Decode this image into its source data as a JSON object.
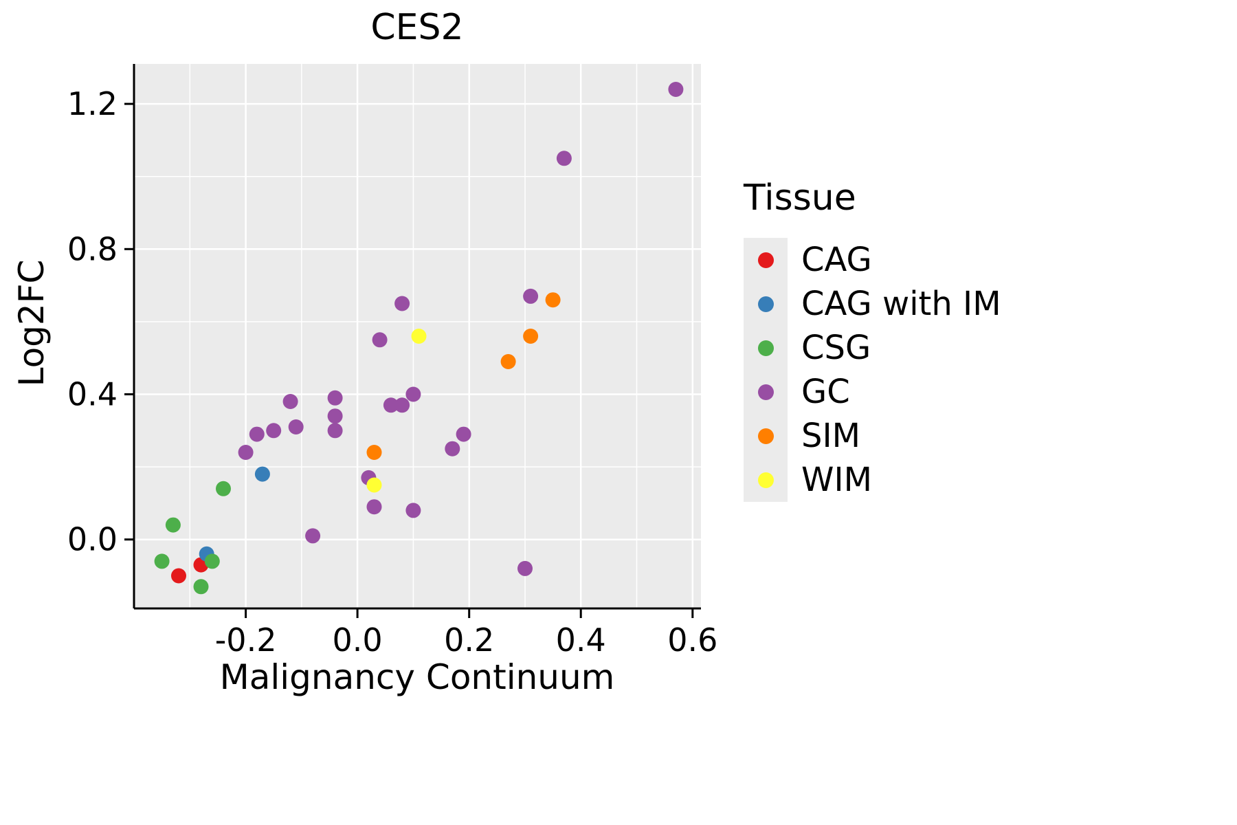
{
  "title": "CES2",
  "axes": {
    "x": {
      "label": "Malignancy Continuum",
      "ticks": [
        "-0.2",
        "0.0",
        "0.2",
        "0.4",
        "0.6"
      ],
      "tick_values": [
        -0.2,
        0.0,
        0.2,
        0.4,
        0.6
      ],
      "minor": [
        -0.3,
        -0.1,
        0.1,
        0.3,
        0.5
      ]
    },
    "y": {
      "label": "Log2FC",
      "ticks": [
        "0.0",
        "0.4",
        "0.8",
        "1.2"
      ],
      "tick_values": [
        0.0,
        0.4,
        0.8,
        1.2
      ],
      "minor": [
        0.2,
        0.6,
        1.0
      ]
    }
  },
  "legend": {
    "title": "Tissue",
    "items": [
      {
        "label": "CAG",
        "color": "#E41A1C"
      },
      {
        "label": "CAG with IM",
        "color": "#377EB8"
      },
      {
        "label": "CSG",
        "color": "#4DAF4A"
      },
      {
        "label": "GC",
        "color": "#984EA3"
      },
      {
        "label": "SIM",
        "color": "#FF7F00"
      },
      {
        "label": "WIM",
        "color": "#FFFF33"
      }
    ]
  },
  "colors": {
    "panel_bg": "#EBEBEB",
    "grid": "#FFFFFF",
    "axis": "#000000"
  },
  "chart_data": {
    "type": "scatter",
    "title": "CES2",
    "xlabel": "Malignancy Continuum",
    "ylabel": "Log2FC",
    "xlim": [
      -0.4,
      0.615
    ],
    "ylim": [
      -0.19,
      1.31
    ],
    "grid": true,
    "legend_position": "right",
    "series": [
      {
        "name": "CAG",
        "color": "#E41A1C",
        "points": [
          [
            -0.32,
            -0.1
          ],
          [
            -0.28,
            -0.07
          ]
        ]
      },
      {
        "name": "CAG with IM",
        "color": "#377EB8",
        "points": [
          [
            -0.17,
            0.18
          ],
          [
            -0.27,
            -0.04
          ]
        ]
      },
      {
        "name": "CSG",
        "color": "#4DAF4A",
        "points": [
          [
            -0.24,
            0.14
          ],
          [
            -0.33,
            0.04
          ],
          [
            -0.35,
            -0.06
          ],
          [
            -0.26,
            -0.06
          ],
          [
            -0.28,
            -0.13
          ]
        ]
      },
      {
        "name": "GC",
        "color": "#984EA3",
        "points": [
          [
            0.57,
            1.24
          ],
          [
            0.37,
            1.05
          ],
          [
            0.31,
            0.67
          ],
          [
            0.08,
            0.65
          ],
          [
            0.04,
            0.55
          ],
          [
            0.1,
            0.4
          ],
          [
            0.08,
            0.37
          ],
          [
            0.06,
            0.37
          ],
          [
            -0.04,
            0.39
          ],
          [
            -0.04,
            0.34
          ],
          [
            -0.04,
            0.3
          ],
          [
            -0.12,
            0.38
          ],
          [
            -0.11,
            0.31
          ],
          [
            -0.15,
            0.3
          ],
          [
            -0.18,
            0.29
          ],
          [
            -0.2,
            0.24
          ],
          [
            0.19,
            0.29
          ],
          [
            0.17,
            0.25
          ],
          [
            0.02,
            0.17
          ],
          [
            0.03,
            0.09
          ],
          [
            0.1,
            0.08
          ],
          [
            -0.08,
            0.01
          ],
          [
            0.3,
            -0.08
          ]
        ]
      },
      {
        "name": "SIM",
        "color": "#FF7F00",
        "points": [
          [
            0.35,
            0.66
          ],
          [
            0.31,
            0.56
          ],
          [
            0.27,
            0.49
          ],
          [
            0.03,
            0.24
          ]
        ]
      },
      {
        "name": "WIM",
        "color": "#FFFF33",
        "points": [
          [
            0.11,
            0.56
          ],
          [
            0.03,
            0.15
          ]
        ]
      }
    ]
  }
}
